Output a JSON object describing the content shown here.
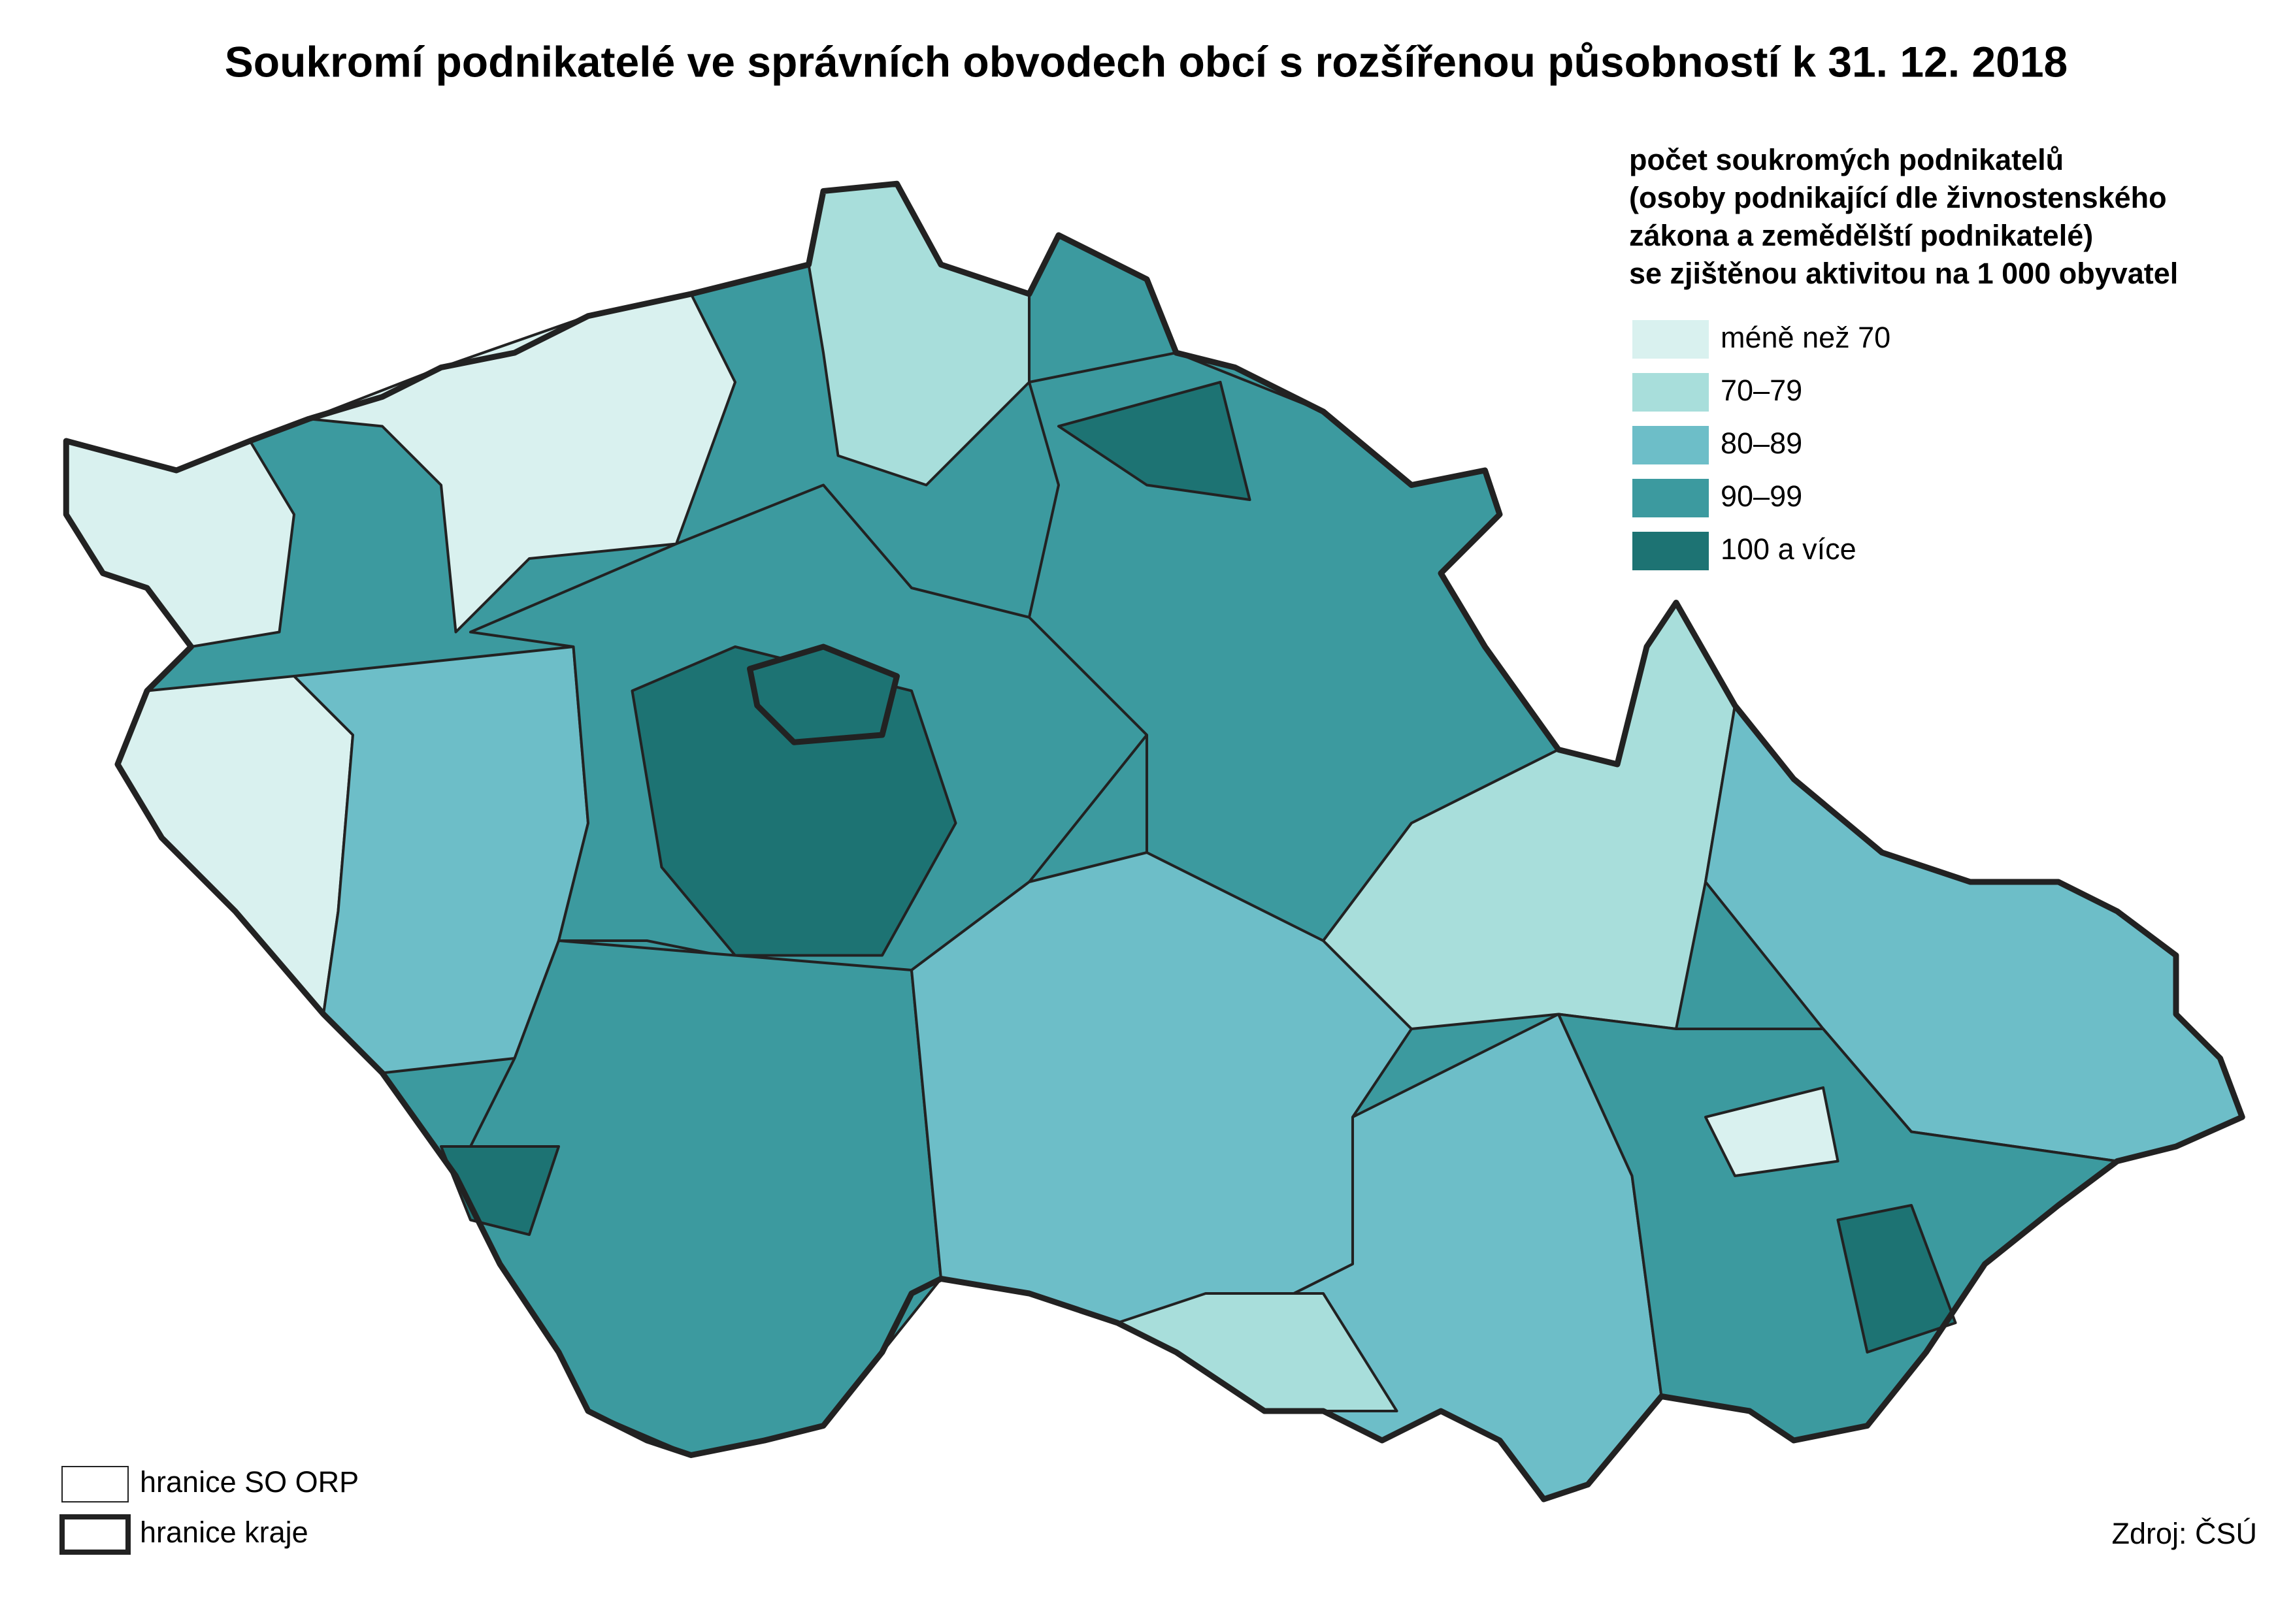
{
  "title": "Soukromí podnikatelé ve správních obvodech obcí s rozšířenou působností k 31. 12. 2018",
  "legend": {
    "title": [
      "počet soukromých podnikatelů",
      "(osoby podnikající dle živnostenského",
      "zákona a zemědělští podnikatelé)",
      "se zjištěnou aktivitou na 1 000 obyvatel"
    ],
    "items": [
      {
        "label": "méně než 70",
        "color": "#d9f1ef"
      },
      {
        "label": "70–79",
        "color": "#a8dedb"
      },
      {
        "label": "80–89",
        "color": "#6dbec8"
      },
      {
        "label": "90–99",
        "color": "#3c9a9f"
      },
      {
        "label": "100 a více",
        "color": "#1d7373"
      }
    ]
  },
  "boundaries": [
    "hranice SO ORP",
    "hranice kraje"
  ],
  "source": "Zdroj: ČSÚ"
}
